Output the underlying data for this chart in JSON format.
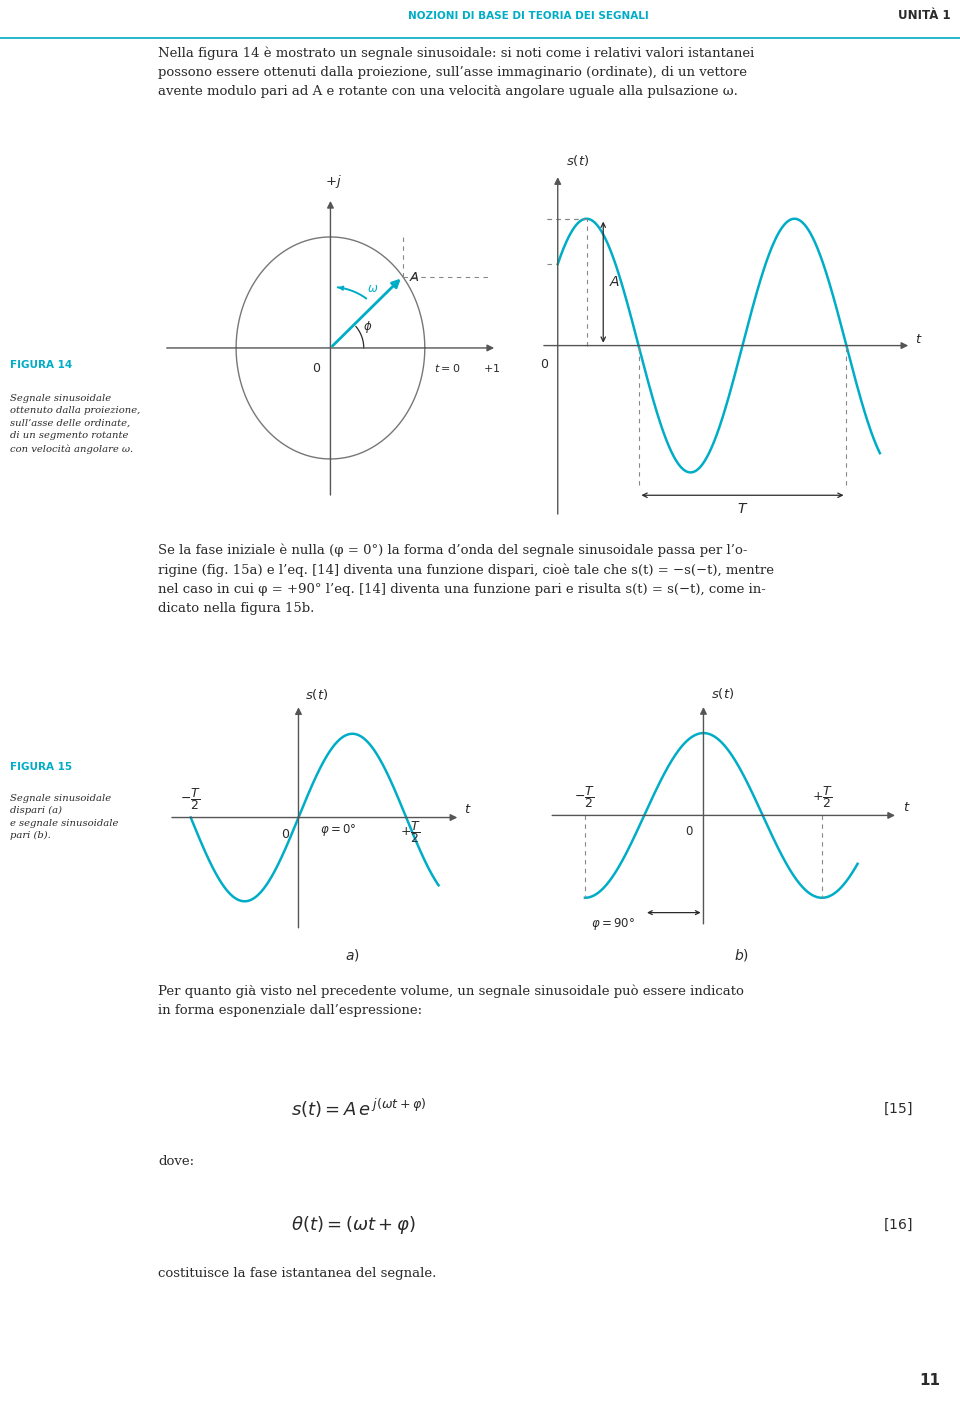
{
  "page_bg": "#ffffff",
  "cyan": "#00adc6",
  "dark_gray": "#2a2a2a",
  "header_text": "NOZIONI DI BASE DI TEORIA DEI SEGNALI",
  "header_unit": "UNITÀ 1",
  "page_number": "11",
  "para1": "Nella figura 14 è mostrato un segnale sinusoidale: si noti come i relativi valori istantanei\npossono essere ottenuti dalla proiezione, sull’asse immaginario (ordinate), di un vettore\navente modulo pari ad A e rotante con una velocità angolare uguale alla pulsazione ω.",
  "figura14_label": "FIGURA 14",
  "figura14_caption": "Segnale sinusoidale\nottenuto dalla proiezione,\nsull’asse delle ordinate,\ndi un segmento rotante\ncon velocità angolare ω.",
  "figura15_label": "FIGURA 15",
  "figura15_caption": "Segnale sinusoidale\ndispari (a)\ne segnale sinusoidale\npari (b).",
  "para2": "Se la fase iniziale è nulla (φ = 0°) la forma d’onda del segnale sinusoidale passa per l’o-\nrigine (fig. 15a) e l’eq. [14] diventa una funzione dispari, cioè tale che s(t) = −s(−t), mentre\nnel caso in cui φ = +90° l’eq. [14] diventa una funzione pari e risulta s(t) = s(−t), come in-\ndicato nella figura 15b.",
  "para3": "Per quanto già visto nel precedente volume, un segnale sinusoidale può essere indicato\nin forma esponenziale dall’espressione:",
  "cost_text": "costituisce la fase istantanea del segnale."
}
